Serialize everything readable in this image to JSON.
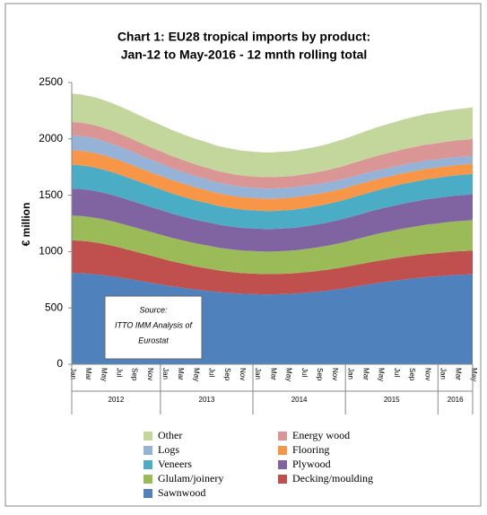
{
  "chart_data": {
    "type": "stacked_area",
    "title": [
      "Chart 1: EU28 tropical imports by product:",
      "Jan-12 to May-2016 - 12 mnth rolling total"
    ],
    "y_label": "€ million",
    "annotation": [
      "Source:",
      "ITTO IMM Analysis of",
      "Eurostat"
    ],
    "categories": [
      "Jan",
      null,
      "Mar",
      null,
      "May",
      null,
      "Jul",
      null,
      "Sep",
      null,
      "Nov",
      null,
      "Jan",
      null,
      "Mar",
      null,
      "May",
      null,
      "Jul",
      null,
      "Sep",
      null,
      "Nov",
      null,
      "Jan",
      null,
      "Mar",
      null,
      "May",
      null,
      "Jul",
      null,
      "Sep",
      null,
      "Nov",
      null,
      "Jan",
      null,
      "Mar",
      null,
      "May",
      null,
      "Jul",
      null,
      "Sep",
      null,
      "Nov",
      null,
      "Jan",
      null,
      "Mar",
      null,
      "May"
    ],
    "year_groups": [
      "2012",
      "2013",
      "2014",
      "2015",
      "2016"
    ],
    "ylim": [
      0,
      2500
    ],
    "yticks": [
      0,
      500,
      1000,
      1500,
      2000,
      2500
    ],
    "series": [
      {
        "name": "Sawnwood",
        "color": "#4f81bd",
        "values": [
          810,
          808,
          804,
          799,
          791,
          782,
          772,
          761,
          749,
          738,
          726,
          715,
          704,
          692,
          683,
          673,
          664,
          656,
          649,
          641,
          635,
          630,
          626,
          624,
          622,
          620,
          620,
          622,
          624,
          627,
          633,
          638,
          645,
          652,
          661,
          670,
          681,
          692,
          703,
          714,
          724,
          733,
          742,
          751,
          759,
          766,
          773,
          778,
          784,
          789,
          793,
          796,
          800
        ]
      },
      {
        "name": "Decking/moulding",
        "color": "#c0504d",
        "values": [
          290,
          289,
          287,
          283,
          279,
          274,
          268,
          261,
          255,
          248,
          242,
          235,
          228,
          222,
          216,
          211,
          205,
          201,
          197,
          192,
          189,
          186,
          183,
          182,
          181,
          180,
          180,
          180,
          181,
          181,
          182,
          183,
          184,
          185,
          187,
          188,
          190,
          192,
          194,
          196,
          197,
          199,
          200,
          202,
          203,
          204,
          206,
          206,
          207,
          208,
          209,
          209,
          210
        ]
      },
      {
        "name": "Glulam/joinery",
        "color": "#9bbb59",
        "values": [
          220,
          220,
          219,
          219,
          218,
          217,
          216,
          215,
          214,
          212,
          211,
          210,
          209,
          208,
          207,
          206,
          205,
          204,
          203,
          202,
          202,
          201,
          201,
          200,
          200,
          200,
          200,
          201,
          201,
          203,
          205,
          207,
          210,
          213,
          216,
          220,
          224,
          228,
          232,
          236,
          241,
          244,
          248,
          251,
          254,
          257,
          260,
          262,
          264,
          266,
          267,
          269,
          270
        ]
      },
      {
        "name": "Plywood",
        "color": "#8064a2",
        "values": [
          240,
          240,
          239,
          238,
          236,
          234,
          232,
          230,
          227,
          225,
          222,
          220,
          218,
          215,
          213,
          211,
          209,
          208,
          206,
          204,
          203,
          202,
          201,
          201,
          200,
          200,
          200,
          200,
          201,
          201,
          202,
          203,
          204,
          205,
          207,
          208,
          210,
          212,
          214,
          216,
          217,
          219,
          220,
          222,
          223,
          224,
          226,
          226,
          227,
          228,
          229,
          229,
          230
        ]
      },
      {
        "name": "Veneers",
        "color": "#4bacc6",
        "values": [
          210,
          210,
          209,
          207,
          205,
          203,
          200,
          197,
          194,
          191,
          188,
          185,
          182,
          179,
          177,
          174,
          172,
          170,
          168,
          166,
          164,
          163,
          162,
          161,
          161,
          160,
          160,
          160,
          160,
          161,
          161,
          162,
          163,
          164,
          165,
          166,
          167,
          168,
          169,
          170,
          172,
          173,
          174,
          175,
          175,
          176,
          177,
          178,
          178,
          179,
          179,
          180,
          180
        ]
      },
      {
        "name": "Flooring",
        "color": "#f79646",
        "values": [
          130,
          130,
          129,
          129,
          128,
          127,
          126,
          125,
          124,
          122,
          121,
          120,
          119,
          118,
          117,
          116,
          115,
          114,
          113,
          112,
          112,
          111,
          111,
          110,
          110,
          110,
          110,
          110,
          110,
          109,
          109,
          108,
          107,
          106,
          105,
          104,
          103,
          102,
          101,
          100,
          98,
          97,
          96,
          95,
          95,
          94,
          93,
          92,
          92,
          91,
          91,
          90,
          90
        ]
      },
      {
        "name": "Logs",
        "color": "#95b3d7",
        "values": [
          130,
          130,
          129,
          128,
          126,
          124,
          122,
          120,
          117,
          115,
          112,
          110,
          108,
          105,
          103,
          101,
          99,
          98,
          96,
          94,
          93,
          92,
          91,
          91,
          90,
          90,
          90,
          90,
          90,
          89,
          89,
          88,
          87,
          86,
          85,
          84,
          83,
          82,
          81,
          80,
          78,
          77,
          76,
          75,
          75,
          74,
          73,
          72,
          72,
          71,
          71,
          70,
          70
        ]
      },
      {
        "name": "Energy wood",
        "color": "#d99694",
        "values": [
          120,
          120,
          119,
          119,
          118,
          117,
          116,
          115,
          114,
          112,
          111,
          110,
          109,
          108,
          107,
          106,
          105,
          104,
          103,
          102,
          102,
          101,
          101,
          100,
          100,
          100,
          100,
          101,
          101,
          102,
          104,
          105,
          107,
          109,
          112,
          114,
          117,
          120,
          123,
          126,
          129,
          132,
          134,
          137,
          139,
          141,
          143,
          144,
          146,
          147,
          148,
          149,
          150
        ]
      },
      {
        "name": "Other",
        "color": "#c3d69b",
        "values": [
          250,
          250,
          249,
          248,
          247,
          246,
          244,
          242,
          240,
          239,
          237,
          235,
          233,
          231,
          230,
          228,
          227,
          226,
          225,
          223,
          222,
          222,
          221,
          221,
          220,
          220,
          220,
          221,
          221,
          222,
          224,
          226,
          228,
          231,
          234,
          237,
          240,
          244,
          248,
          251,
          255,
          258,
          261,
          264,
          266,
          269,
          271,
          273,
          275,
          276,
          277,
          279,
          280
        ]
      }
    ]
  }
}
